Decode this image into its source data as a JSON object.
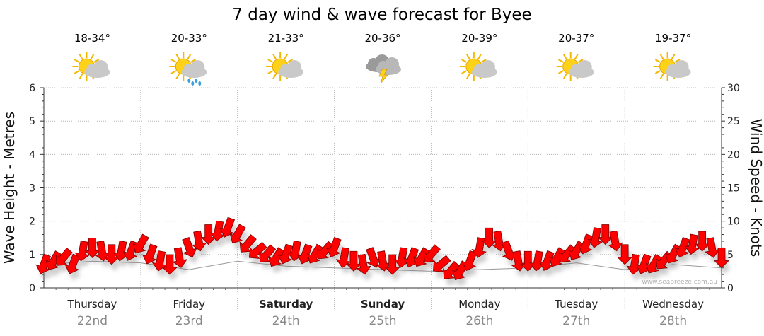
{
  "chart_data": {
    "type": "line",
    "title": "7 day wind & wave forecast for Byee",
    "y_left_label": "Wave Height - Metres",
    "y_right_label": "Wind Speed - Knots",
    "y_left_range": [
      0,
      6
    ],
    "y_right_range": [
      0,
      30
    ],
    "y_left_ticks": [
      "0",
      "1",
      "2",
      "3",
      "4",
      "5",
      "6"
    ],
    "y_right_ticks": [
      "0",
      "5",
      "10",
      "15",
      "20",
      "25",
      "30"
    ],
    "grid": true,
    "x_range_days": [
      0,
      7
    ],
    "days": [
      {
        "name": "Thursday",
        "date": "22nd",
        "bold": false,
        "temp": "18-34°",
        "icon": "partly-cloudy-sun-icon"
      },
      {
        "name": "Friday",
        "date": "23rd",
        "bold": false,
        "temp": "20-33°",
        "icon": "rain-showers-sun-icon"
      },
      {
        "name": "Saturday",
        "date": "24th",
        "bold": true,
        "temp": "21-33°",
        "icon": "partly-cloudy-sun-icon"
      },
      {
        "name": "Sunday",
        "date": "25th",
        "bold": true,
        "temp": "20-36°",
        "icon": "thunderstorm-cloud-icon"
      },
      {
        "name": "Monday",
        "date": "26th",
        "bold": false,
        "temp": "20-39°",
        "icon": "partly-cloudy-sun-icon"
      },
      {
        "name": "Tuesday",
        "date": "27th",
        "bold": false,
        "temp": "20-37°",
        "icon": "partly-cloudy-sun-icon"
      },
      {
        "name": "Wednesday",
        "date": "28th",
        "bold": false,
        "temp": "19-37°",
        "icon": "partly-cloudy-sun-icon"
      }
    ],
    "wind_series": {
      "name": "",
      "color": "#ff0000",
      "x_days": [
        0.0,
        0.1,
        0.2,
        0.3,
        0.4,
        0.5,
        0.6,
        0.7,
        0.8,
        0.9,
        1.0,
        1.1,
        1.2,
        1.3,
        1.4,
        1.5,
        1.6,
        1.7,
        1.8,
        1.9,
        2.0,
        2.1,
        2.2,
        2.3,
        2.4,
        2.5,
        2.6,
        2.7,
        2.8,
        2.9,
        3.0,
        3.1,
        3.2,
        3.3,
        3.4,
        3.5,
        3.6,
        3.7,
        3.8,
        3.9,
        4.0,
        4.1,
        4.2,
        4.3,
        4.4,
        4.5,
        4.6,
        4.7,
        4.8,
        4.9,
        5.0,
        5.1,
        5.2,
        5.3,
        5.4,
        5.5,
        5.6,
        5.7,
        5.8,
        5.9,
        6.0,
        6.1,
        6.2,
        6.3,
        6.4,
        6.5,
        6.6,
        6.7,
        6.8,
        6.9,
        7.0
      ],
      "knots": [
        3.5,
        4.0,
        4.5,
        3.5,
        5.5,
        6.0,
        5.5,
        5.0,
        5.5,
        5.5,
        6.5,
        5.0,
        4.0,
        3.5,
        4.5,
        6.0,
        7.0,
        8.0,
        8.5,
        9.0,
        8.0,
        6.5,
        5.5,
        5.0,
        4.5,
        5.0,
        5.5,
        5.0,
        5.0,
        5.5,
        6.0,
        4.5,
        4.0,
        3.5,
        4.5,
        4.0,
        3.5,
        4.5,
        4.5,
        4.5,
        5.0,
        3.5,
        2.5,
        2.5,
        4.0,
        6.0,
        7.5,
        7.0,
        5.5,
        4.0,
        4.0,
        4.0,
        4.0,
        4.5,
        5.0,
        5.5,
        6.5,
        7.5,
        8.0,
        7.0,
        5.0,
        3.5,
        3.5,
        3.5,
        4.0,
        5.0,
        6.0,
        6.5,
        7.0,
        6.0,
        4.5
      ],
      "direction_deg": [
        200,
        210,
        220,
        200,
        190,
        180,
        170,
        180,
        190,
        200,
        210,
        200,
        190,
        180,
        170,
        160,
        170,
        180,
        190,
        200,
        210,
        220,
        230,
        220,
        210,
        200,
        190,
        200,
        210,
        220,
        200,
        190,
        180,
        170,
        160,
        170,
        180,
        190,
        200,
        210,
        220,
        230,
        220,
        210,
        200,
        190,
        180,
        170,
        160,
        170,
        180,
        190,
        200,
        210,
        220,
        210,
        200,
        190,
        180,
        170,
        180,
        190,
        200,
        210,
        220,
        210,
        200,
        190,
        180,
        170,
        180
      ]
    },
    "wave_series": {
      "name": "",
      "color": "#555555",
      "x_days": [
        0.0,
        0.5,
        1.0,
        1.5,
        2.0,
        2.5,
        3.0,
        3.5,
        4.0,
        4.5,
        5.0,
        5.5,
        6.0,
        6.5,
        7.0
      ],
      "metres": [
        0.7,
        0.8,
        0.75,
        0.55,
        0.8,
        0.65,
        0.6,
        0.55,
        0.5,
        0.55,
        0.6,
        0.75,
        0.55,
        0.7,
        0.6
      ]
    },
    "watermark": "www.seabreeze.com.au"
  }
}
